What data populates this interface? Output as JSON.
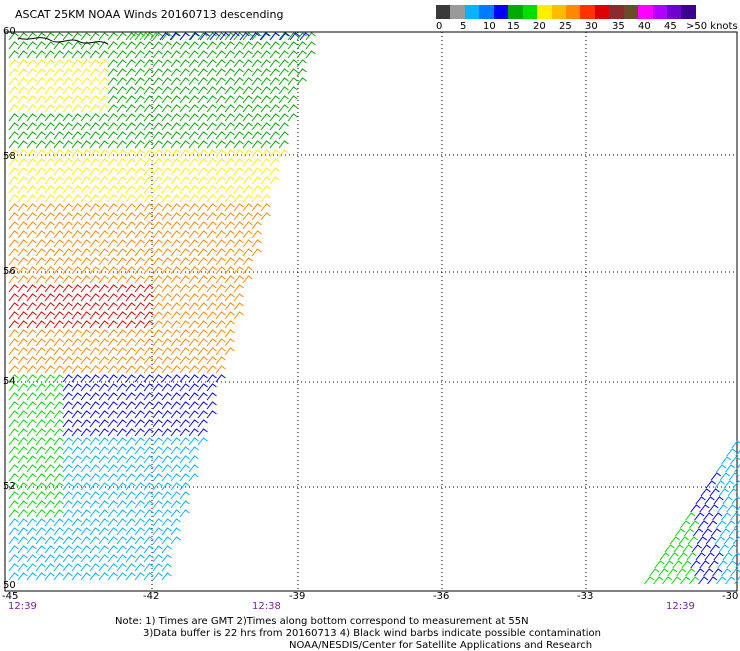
{
  "title": "ASCAT 25KM NOAA Winds 20160713 descending",
  "colorbar": {
    "labels": [
      "0",
      "5",
      "10",
      "15",
      "20",
      "25",
      "30",
      "35",
      "40",
      "45",
      ">50 knots"
    ],
    "colors": [
      "#3a3a3a",
      "#9a9a9a",
      "#00b4ff",
      "#007bff",
      "#0000ff",
      "#00aa00",
      "#00dd00",
      "#ffee00",
      "#ffbb00",
      "#ff8800",
      "#ff3300",
      "#dd0000",
      "#8b2b2b",
      "#6b4a2a",
      "#ff00ff",
      "#b000ff",
      "#7000d0",
      "#3b0090"
    ]
  },
  "axes": {
    "lat_ticks": [
      "60",
      "58",
      "56",
      "54",
      "52",
      "50"
    ],
    "lon_ticks": [
      "-45",
      "-42",
      "-39",
      "-36",
      "-33",
      "-30"
    ]
  },
  "times": [
    "12:39",
    "12:38",
    "12:39"
  ],
  "notes": {
    "line1": "Note: 1) Times are GMT 2)Times along bottom correspond to measurement at 55N",
    "line2": "3)Data buffer is 22 hrs from 20160713 4) Black wind barbs indicate possible contamination",
    "line3": "NOAA/NESDIS/Center for Satellite Applications and Research"
  }
}
